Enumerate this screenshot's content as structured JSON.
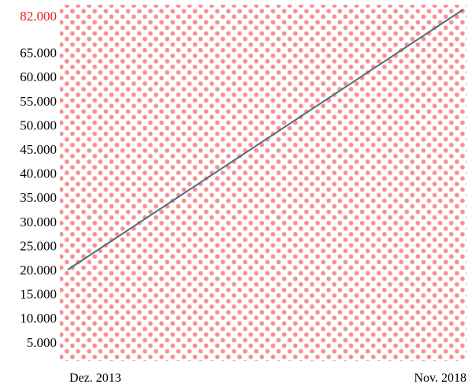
{
  "chart_data": {
    "type": "line",
    "x": [
      "Dez. 2013",
      "Nov. 2018"
    ],
    "series": [
      {
        "values": [
          20000,
          82000
        ]
      }
    ],
    "y_tick_labels": [
      "5.000",
      "10.000",
      "15.000",
      "20.000",
      "25.000",
      "30.000",
      "35.000",
      "40.000",
      "45.000",
      "50.000",
      "55.000",
      "60.000",
      "65.000"
    ],
    "y_tick_values": [
      5000,
      10000,
      15000,
      20000,
      25000,
      30000,
      35000,
      40000,
      45000,
      50000,
      55000,
      60000,
      65000
    ],
    "highlight_label": "82.000",
    "highlight_value": 82000,
    "x_tick_labels": [
      "Dez. 2013",
      "Nov. 2018"
    ],
    "grid": false,
    "background_pattern": "red halftone dots",
    "colors": {
      "line": "#4f6b80",
      "highlight_label": "#e8231f",
      "dots": "#f26b6b"
    }
  }
}
